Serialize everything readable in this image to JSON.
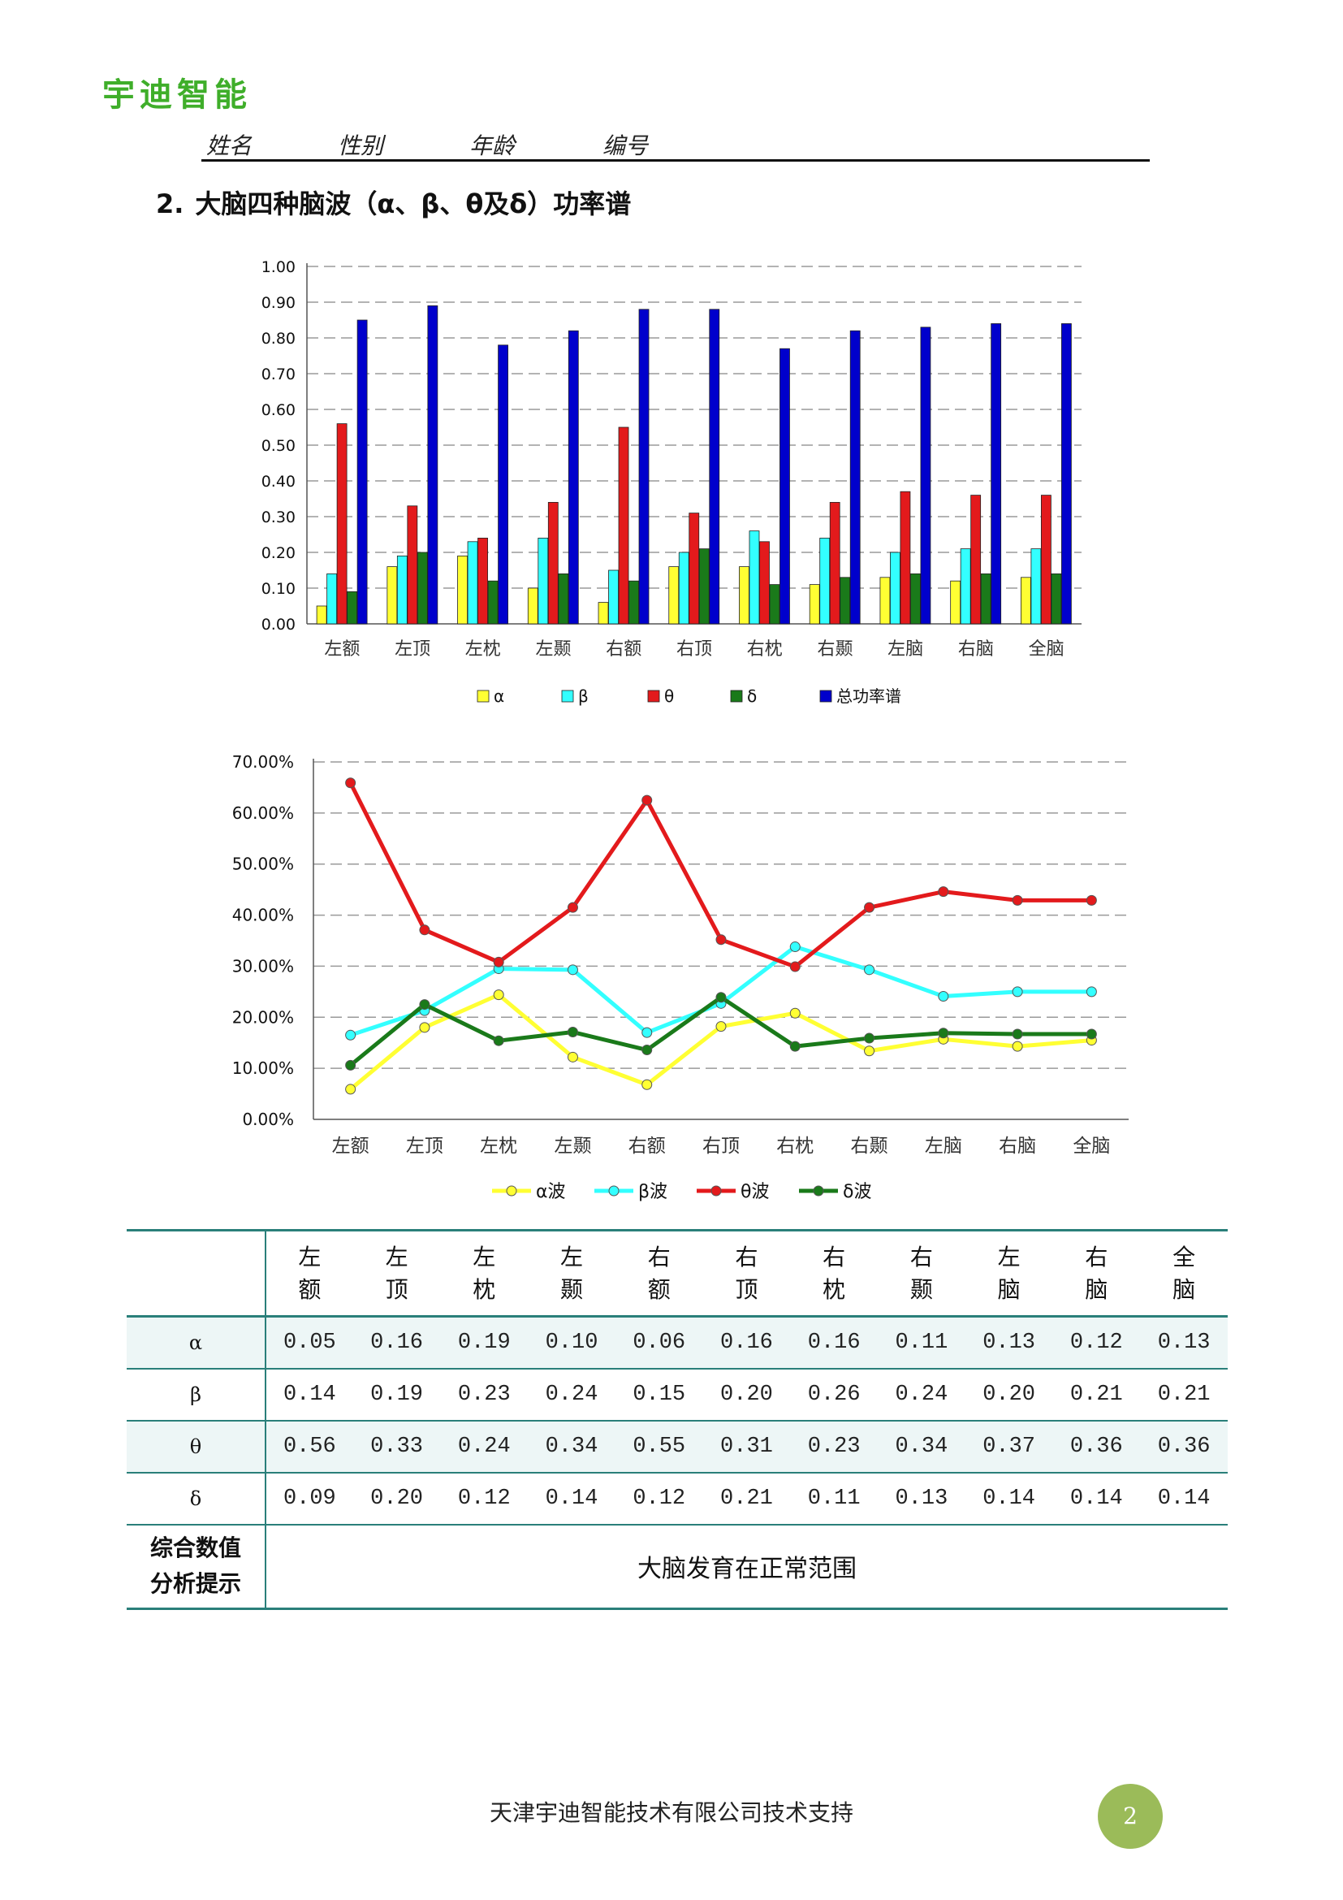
{
  "header": {
    "logo": "宇迪智能",
    "fields": [
      "姓名",
      "性别",
      "年龄",
      "编号"
    ]
  },
  "section": {
    "number": "2.",
    "title": "大脑四种脑波（α、β、θ及δ）功率谱"
  },
  "colors": {
    "alpha": "#ffff33",
    "beta": "#33ffff",
    "theta": "#e31a1c",
    "delta": "#1a7a1a",
    "total": "#0000cc",
    "table_border": "#2a7f7a",
    "badge": "#9bbb59",
    "logo": "#3fae2a"
  },
  "chart_data": [
    {
      "type": "bar",
      "categories": [
        "左额",
        "左顶",
        "左枕",
        "左颞",
        "右额",
        "右顶",
        "右枕",
        "右颞",
        "左脑",
        "右脑",
        "全脑"
      ],
      "series": [
        {
          "name": "α",
          "color_key": "alpha",
          "values": [
            0.05,
            0.16,
            0.19,
            0.1,
            0.06,
            0.16,
            0.16,
            0.11,
            0.13,
            0.12,
            0.13
          ]
        },
        {
          "name": "β",
          "color_key": "beta",
          "values": [
            0.14,
            0.19,
            0.23,
            0.24,
            0.15,
            0.2,
            0.26,
            0.24,
            0.2,
            0.21,
            0.21
          ]
        },
        {
          "name": "θ",
          "color_key": "theta",
          "values": [
            0.56,
            0.33,
            0.24,
            0.34,
            0.55,
            0.31,
            0.23,
            0.34,
            0.37,
            0.36,
            0.36
          ]
        },
        {
          "name": "δ",
          "color_key": "delta",
          "values": [
            0.09,
            0.2,
            0.12,
            0.14,
            0.12,
            0.21,
            0.11,
            0.13,
            0.14,
            0.14,
            0.14
          ]
        },
        {
          "name": "总功率谱",
          "color_key": "total",
          "values": [
            0.85,
            0.89,
            0.78,
            0.82,
            0.88,
            0.88,
            0.77,
            0.82,
            0.83,
            0.84,
            0.84
          ]
        }
      ],
      "ylim": [
        0,
        1.0
      ],
      "yticks": [
        "0.00",
        "0.10",
        "0.20",
        "0.30",
        "0.40",
        "0.50",
        "0.60",
        "0.70",
        "0.80",
        "0.90",
        "1.00"
      ],
      "grid": true,
      "legend": "bottom"
    },
    {
      "type": "line",
      "categories": [
        "左额",
        "左顶",
        "左枕",
        "左颞",
        "右额",
        "右顶",
        "右枕",
        "右颞",
        "左脑",
        "右脑",
        "全脑"
      ],
      "series": [
        {
          "name": "α波",
          "color_key": "alpha",
          "values": [
            5.9,
            18.0,
            24.4,
            12.2,
            6.8,
            18.2,
            20.8,
            13.4,
            15.7,
            14.3,
            15.5
          ]
        },
        {
          "name": "β波",
          "color_key": "beta",
          "values": [
            16.5,
            21.3,
            29.5,
            29.3,
            17.0,
            22.7,
            33.8,
            29.3,
            24.1,
            25.0,
            25.0
          ]
        },
        {
          "name": "θ波",
          "color_key": "theta",
          "values": [
            65.9,
            37.1,
            30.8,
            41.5,
            62.5,
            35.2,
            29.9,
            41.5,
            44.6,
            42.9,
            42.9
          ]
        },
        {
          "name": "δ波",
          "color_key": "delta",
          "values": [
            10.6,
            22.5,
            15.4,
            17.1,
            13.6,
            23.9,
            14.3,
            15.9,
            16.9,
            16.7,
            16.7
          ]
        }
      ],
      "ylim": [
        0,
        70
      ],
      "yticks": [
        "0.00%",
        "10.00%",
        "20.00%",
        "30.00%",
        "40.00%",
        "50.00%",
        "60.00%",
        "70.00%"
      ],
      "grid": true,
      "legend": "bottom"
    }
  ],
  "table": {
    "corner": "",
    "columns": [
      "左额",
      "左顶",
      "左枕",
      "左颞",
      "右额",
      "右顶",
      "右枕",
      "右颞",
      "左脑",
      "右脑",
      "全脑"
    ],
    "rows": [
      {
        "label": "α",
        "values": [
          "0.05",
          "0.16",
          "0.19",
          "0.10",
          "0.06",
          "0.16",
          "0.16",
          "0.11",
          "0.13",
          "0.12",
          "0.13"
        ]
      },
      {
        "label": "β",
        "values": [
          "0.14",
          "0.19",
          "0.23",
          "0.24",
          "0.15",
          "0.20",
          "0.26",
          "0.24",
          "0.20",
          "0.21",
          "0.21"
        ]
      },
      {
        "label": "θ",
        "values": [
          "0.56",
          "0.33",
          "0.24",
          "0.34",
          "0.55",
          "0.31",
          "0.23",
          "0.34",
          "0.37",
          "0.36",
          "0.36"
        ]
      },
      {
        "label": "δ",
        "values": [
          "0.09",
          "0.20",
          "0.12",
          "0.14",
          "0.12",
          "0.21",
          "0.11",
          "0.13",
          "0.14",
          "0.14",
          "0.14"
        ]
      }
    ],
    "summary_label_line1": "综合数值",
    "summary_label_line2": "分析提示",
    "summary_text": "大脑发育在正常范围"
  },
  "footer": {
    "text": "天津宇迪智能技术有限公司技术支持",
    "page_number": "2"
  }
}
